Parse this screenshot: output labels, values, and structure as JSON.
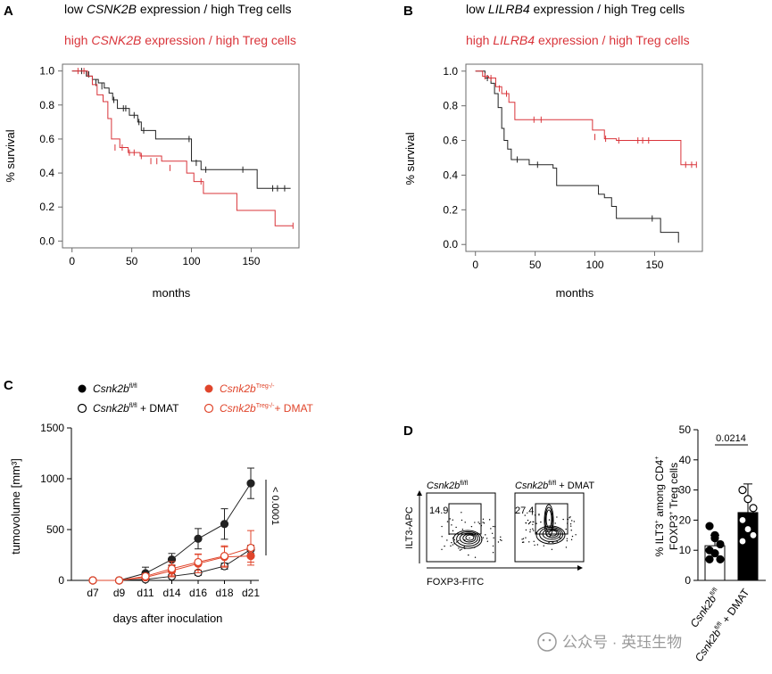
{
  "colors": {
    "black": "#222222",
    "red": "#d9343a",
    "orange": "#e0452b",
    "frame": "#6b6b6b",
    "watermark": "#9a9a9a"
  },
  "panel_labels": {
    "A": "A",
    "B": "B",
    "C": "C",
    "D": "D"
  },
  "units": {
    "mm3_label": "tumovolume [mm³]"
  },
  "chart_data": [
    {
      "type": "line",
      "panel": "A",
      "subtype": "kaplan-meier",
      "legend": {
        "low": {
          "prefix": "low ",
          "gene": "CSNK2B",
          "suffix": " expression / high Treg cells"
        },
        "high": {
          "prefix": "high ",
          "gene": "CSNK2B",
          "suffix": " expression / high Treg cells"
        }
      },
      "xlabel": "months",
      "ylabel": "% survival",
      "xlim": [
        -8,
        190
      ],
      "ylim": [
        -0.04,
        1.04
      ],
      "xticks": [
        0,
        50,
        100,
        150
      ],
      "yticks": [
        0.0,
        0.2,
        0.4,
        0.6,
        0.8,
        1.0
      ],
      "series": [
        {
          "name": "low",
          "color": "black",
          "steps": [
            [
              0,
              1.0
            ],
            [
              12,
              0.97
            ],
            [
              17,
              0.95
            ],
            [
              22,
              0.93
            ],
            [
              27,
              0.9
            ],
            [
              31,
              0.87
            ],
            [
              34,
              0.83
            ],
            [
              38,
              0.78
            ],
            [
              48,
              0.74
            ],
            [
              55,
              0.7
            ],
            [
              58,
              0.65
            ],
            [
              70,
              0.6
            ],
            [
              93,
              0.6
            ],
            [
              100,
              0.47
            ],
            [
              108,
              0.42
            ],
            [
              150,
              0.42
            ],
            [
              155,
              0.31
            ],
            [
              183,
              0.31
            ]
          ],
          "censors": [
            [
              8,
              1.0
            ],
            [
              14,
              0.98
            ],
            [
              20,
              0.93
            ],
            [
              25,
              0.91
            ],
            [
              35,
              0.83
            ],
            [
              43,
              0.78
            ],
            [
              45,
              0.78
            ],
            [
              52,
              0.74
            ],
            [
              56,
              0.7
            ],
            [
              60,
              0.65
            ],
            [
              98,
              0.6
            ],
            [
              104,
              0.46
            ],
            [
              112,
              0.42
            ],
            [
              143,
              0.42
            ],
            [
              168,
              0.31
            ],
            [
              172,
              0.31
            ],
            [
              178,
              0.31
            ]
          ]
        },
        {
          "name": "high",
          "color": "red",
          "steps": [
            [
              0,
              1.0
            ],
            [
              13,
              0.97
            ],
            [
              17,
              0.92
            ],
            [
              21,
              0.86
            ],
            [
              26,
              0.82
            ],
            [
              30,
              0.72
            ],
            [
              33,
              0.6
            ],
            [
              40,
              0.55
            ],
            [
              47,
              0.52
            ],
            [
              57,
              0.5
            ],
            [
              75,
              0.47
            ],
            [
              96,
              0.4
            ],
            [
              102,
              0.35
            ],
            [
              110,
              0.28
            ],
            [
              138,
              0.18
            ],
            [
              170,
              0.09
            ],
            [
              185,
              0.09
            ]
          ],
          "censors": [
            [
              5,
              1.0
            ],
            [
              10,
              1.0
            ],
            [
              36,
              0.55
            ],
            [
              42,
              0.55
            ],
            [
              48,
              0.52
            ],
            [
              52,
              0.52
            ],
            [
              58,
              0.5
            ],
            [
              66,
              0.47
            ],
            [
              71,
              0.47
            ],
            [
              82,
              0.43
            ],
            [
              108,
              0.35
            ],
            [
              185,
              0.09
            ]
          ]
        }
      ]
    },
    {
      "type": "line",
      "panel": "B",
      "subtype": "kaplan-meier",
      "legend": {
        "low": {
          "prefix": "low ",
          "gene": "LILRB4",
          "suffix": " expression / high Treg cells"
        },
        "high": {
          "prefix": "high ",
          "gene": "LILRB4",
          "suffix": " expression / high Treg cells"
        }
      },
      "xlabel": "months",
      "ylabel": "% survival",
      "xlim": [
        -8,
        190
      ],
      "ylim": [
        -0.04,
        1.04
      ],
      "xticks": [
        0,
        50,
        100,
        150
      ],
      "yticks": [
        0.0,
        0.2,
        0.4,
        0.6,
        0.8,
        1.0
      ],
      "series": [
        {
          "name": "low",
          "color": "black",
          "steps": [
            [
              0,
              1.0
            ],
            [
              8,
              0.96
            ],
            [
              13,
              0.93
            ],
            [
              16,
              0.87
            ],
            [
              19,
              0.79
            ],
            [
              22,
              0.67
            ],
            [
              24,
              0.6
            ],
            [
              27,
              0.55
            ],
            [
              30,
              0.49
            ],
            [
              45,
              0.46
            ],
            [
              65,
              0.44
            ],
            [
              68,
              0.34
            ],
            [
              103,
              0.29
            ],
            [
              108,
              0.27
            ],
            [
              114,
              0.22
            ],
            [
              118,
              0.15
            ],
            [
              145,
              0.15
            ],
            [
              155,
              0.07
            ],
            [
              168,
              0.07
            ],
            [
              170,
              0.01
            ]
          ],
          "censors": [
            [
              10,
              0.96
            ],
            [
              35,
              0.49
            ],
            [
              52,
              0.46
            ],
            [
              148,
              0.15
            ]
          ]
        },
        {
          "name": "high",
          "color": "red",
          "steps": [
            [
              0,
              1.0
            ],
            [
              6,
              0.97
            ],
            [
              11,
              0.96
            ],
            [
              17,
              0.91
            ],
            [
              22,
              0.87
            ],
            [
              28,
              0.82
            ],
            [
              33,
              0.72
            ],
            [
              98,
              0.66
            ],
            [
              108,
              0.61
            ],
            [
              118,
              0.6
            ],
            [
              168,
              0.6
            ],
            [
              172,
              0.46
            ],
            [
              185,
              0.46
            ]
          ],
          "censors": [
            [
              8,
              0.97
            ],
            [
              13,
              0.96
            ],
            [
              20,
              0.9
            ],
            [
              26,
              0.87
            ],
            [
              49,
              0.72
            ],
            [
              55,
              0.72
            ],
            [
              100,
              0.62
            ],
            [
              109,
              0.61
            ],
            [
              120,
              0.6
            ],
            [
              136,
              0.6
            ],
            [
              140,
              0.6
            ],
            [
              145,
              0.6
            ],
            [
              176,
              0.46
            ],
            [
              181,
              0.46
            ],
            [
              185,
              0.46
            ]
          ]
        }
      ]
    },
    {
      "type": "line",
      "panel": "C",
      "categories": [
        "d7",
        "d9",
        "d11",
        "d14",
        "d16",
        "d18",
        "d21"
      ],
      "xlabel": "days after inoculation",
      "ylabel": "tumovolume [mm³]",
      "yticks": [
        0,
        500,
        1000,
        1500
      ],
      "ylim": [
        0,
        1500
      ],
      "legend": [
        {
          "gene": "Csnk2b",
          "sup": "fl/fl",
          "suffix": "",
          "color": "black",
          "marker": "filled"
        },
        {
          "gene": "Csnk2b",
          "sup": "fl/fl",
          "suffix": " + DMAT",
          "color": "black",
          "marker": "open"
        },
        {
          "gene": "Csnk2b",
          "sup": "Treg-/-",
          "suffix": "",
          "color": "orange",
          "marker": "filled"
        },
        {
          "gene": "Csnk2b",
          "sup": "Treg-/-",
          "suffix": "+ DMAT",
          "color": "orange",
          "marker": "open"
        }
      ],
      "series": [
        {
          "name": "Csnk2b fl/fl",
          "color": "black",
          "marker": "filled",
          "values": [
            0,
            0,
            70,
            205,
            410,
            555,
            955
          ],
          "errors": [
            5,
            10,
            60,
            60,
            100,
            150,
            150
          ]
        },
        {
          "name": "Csnk2b fl/fl + DMAT",
          "color": "black",
          "marker": "open",
          "values": [
            0,
            0,
            10,
            40,
            75,
            140,
            305
          ],
          "errors": [
            3,
            5,
            8,
            15,
            25,
            30,
            40
          ]
        },
        {
          "name": "Csnk2b Treg-/-",
          "color": "orange",
          "marker": "filled",
          "values": [
            0,
            0,
            30,
            95,
            165,
            230,
            240
          ],
          "errors": [
            3,
            8,
            20,
            60,
            90,
            100,
            60
          ]
        },
        {
          "name": "Csnk2b Treg-/- + DMAT",
          "color": "orange",
          "marker": "open",
          "values": [
            0,
            0,
            40,
            115,
            180,
            240,
            320
          ],
          "errors": [
            3,
            8,
            25,
            70,
            80,
            100,
            170
          ]
        }
      ],
      "pvalue": "< 0.0001"
    },
    {
      "type": "bar",
      "panel": "D",
      "categories": [
        {
          "gene": "Csnk2b",
          "sup": "fl/fl",
          "suffix": ""
        },
        {
          "gene": "Csnk2b",
          "sup": "fl/fl",
          "suffix": " + DMAT"
        }
      ],
      "values": [
        11.5,
        22.5
      ],
      "errors": [
        3.5,
        9.5
      ],
      "points": [
        [
          18,
          15,
          12,
          10,
          9,
          7,
          7,
          14
        ],
        [
          30,
          27,
          24,
          20,
          17,
          15,
          13
        ]
      ],
      "ylabel": {
        "l1a": "% ILT3",
        "l1sup": "+",
        "l1b": " among CD4",
        "l1sup2": "+",
        "l2a": "FOXP3",
        "l2sup": "+",
        "l2b": " Treg cells"
      },
      "yticks": [
        0,
        10,
        20,
        30,
        40,
        50
      ],
      "ylim": [
        0,
        50
      ],
      "pvalue": "0.0214"
    }
  ],
  "flow": {
    "plots": [
      {
        "title_gene": "Csnk2b",
        "title_sup": "fl/fl",
        "title_suffix": "",
        "gate_value": "14.9"
      },
      {
        "title_gene": "Csnk2b",
        "title_sup": "fl/fl",
        "title_suffix": " + DMAT",
        "gate_value": "27.4"
      }
    ],
    "y_axis": "ILT3-APC",
    "x_axis": "FOXP3-FITC"
  },
  "watermark": "公众号 · 英珏生物"
}
